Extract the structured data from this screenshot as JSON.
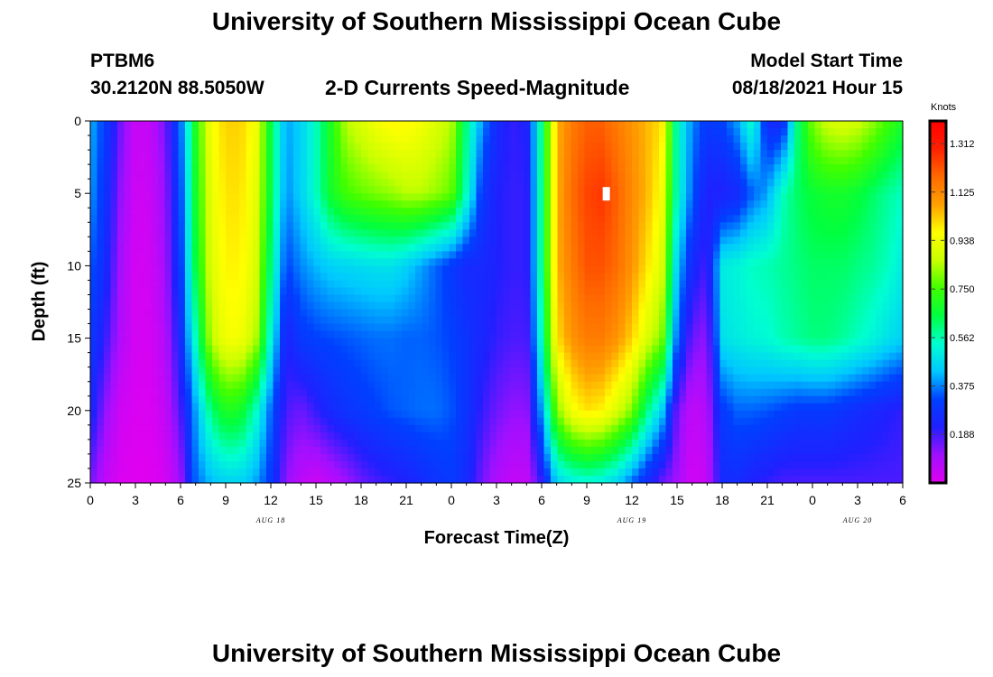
{
  "page": {
    "title_top": "University of Southern Mississippi Ocean Cube",
    "title_bottom": "University of Southern Mississippi Ocean Cube",
    "station": "PTBM6",
    "coordinates": "30.2120N  88.5050W",
    "subtitle": "2-D Currents Speed-Magnitude",
    "model_label": "Model Start Time",
    "model_time": "08/18/2021 Hour 15"
  },
  "colors": {
    "colormap": [
      "#e000f0",
      "#a010ff",
      "#2020ff",
      "#0040ff",
      "#00c8ff",
      "#00ffd0",
      "#00ff40",
      "#40ff00",
      "#c8ff00",
      "#ffff00",
      "#ffa000",
      "#ff6a00",
      "#ff2000",
      "#ff0000"
    ],
    "marker": "#ffffff"
  },
  "chart_data": {
    "type": "heatmap",
    "title": "2-D Currents Speed-Magnitude",
    "xlabel": "Forecast Time(Z)",
    "ylabel": "Depth (ft)",
    "x_tick_labels": [
      "0",
      "3",
      "6",
      "9",
      "12",
      "15",
      "18",
      "21",
      "0",
      "3",
      "6",
      "9",
      "12",
      "15",
      "18",
      "21",
      "0",
      "3",
      "6"
    ],
    "x_range_hours": [
      0,
      54
    ],
    "date_labels": [
      {
        "label": "AUG 18",
        "hour": 12
      },
      {
        "label": "AUG 19",
        "hour": 36
      },
      {
        "label": "AUG 20",
        "hour": 51
      }
    ],
    "y_tick_labels": [
      "0",
      "5",
      "10",
      "15",
      "20",
      "25"
    ],
    "y_range_ft": [
      0,
      25
    ],
    "colorbar": {
      "unit": "Knots",
      "min": 0.0,
      "max": 1.4,
      "tick_labels": [
        "1.312",
        "1.125",
        "0.938",
        "0.750",
        "0.562",
        "0.375",
        "0.188"
      ],
      "tick_values": [
        1.312,
        1.125,
        0.938,
        0.75,
        0.562,
        0.375,
        0.188
      ]
    },
    "depths_ft": [
      0,
      5,
      10,
      15,
      20,
      25
    ],
    "hours": [
      0,
      1,
      2,
      3,
      4,
      5,
      6,
      7,
      8,
      9,
      10,
      11,
      12,
      13,
      14,
      15,
      16,
      17,
      18,
      19,
      20,
      21,
      22,
      23,
      24,
      25,
      26,
      27,
      28,
      29,
      30,
      31,
      32,
      33,
      34,
      35,
      36,
      37,
      38,
      39,
      40,
      41,
      42,
      43,
      44,
      45,
      46,
      47,
      48,
      49,
      50,
      51,
      52,
      53,
      54
    ],
    "speed_knots": [
      [
        0.42,
        0.3,
        0.15,
        0.04,
        0.05,
        0.15,
        0.35,
        0.7,
        0.95,
        1.02,
        1.02,
        0.95,
        0.65,
        0.4,
        0.45,
        0.55,
        0.7,
        0.85,
        0.9,
        0.95,
        0.98,
        0.98,
        0.95,
        0.9,
        0.85,
        0.6,
        0.4,
        0.25,
        0.2,
        0.22,
        0.6,
        1.05,
        1.15,
        1.2,
        1.2,
        1.15,
        1.1,
        1.05,
        1.0,
        0.55,
        0.38,
        0.3,
        0.32,
        0.4,
        0.55,
        0.25,
        0.25,
        0.6,
        0.8,
        0.88,
        0.9,
        0.88,
        0.82,
        0.75,
        0.68
      ],
      [
        0.4,
        0.28,
        0.12,
        0.03,
        0.04,
        0.12,
        0.32,
        0.68,
        0.92,
        1.0,
        1.0,
        0.92,
        0.65,
        0.38,
        0.45,
        0.55,
        0.68,
        0.75,
        0.78,
        0.8,
        0.82,
        0.85,
        0.85,
        0.82,
        0.78,
        0.55,
        0.3,
        0.22,
        0.2,
        0.2,
        0.6,
        1.05,
        1.18,
        1.24,
        1.26,
        1.2,
        1.12,
        1.05,
        0.95,
        0.55,
        0.35,
        0.22,
        0.22,
        0.25,
        0.35,
        0.4,
        0.55,
        0.62,
        0.66,
        0.68,
        0.68,
        0.66,
        0.62,
        0.58,
        0.55
      ],
      [
        0.35,
        0.25,
        0.1,
        0.02,
        0.03,
        0.1,
        0.3,
        0.65,
        0.9,
        0.98,
        0.98,
        0.9,
        0.6,
        0.32,
        0.38,
        0.42,
        0.45,
        0.46,
        0.47,
        0.48,
        0.48,
        0.45,
        0.4,
        0.35,
        0.3,
        0.25,
        0.25,
        0.22,
        0.2,
        0.2,
        0.6,
        1.05,
        1.15,
        1.22,
        1.22,
        1.18,
        1.1,
        1.0,
        0.9,
        0.45,
        0.25,
        0.18,
        0.5,
        0.52,
        0.55,
        0.56,
        0.58,
        0.6,
        0.62,
        0.62,
        0.62,
        0.6,
        0.58,
        0.55,
        0.5
      ],
      [
        0.3,
        0.2,
        0.08,
        0.02,
        0.02,
        0.08,
        0.25,
        0.55,
        0.85,
        0.95,
        0.95,
        0.85,
        0.52,
        0.22,
        0.3,
        0.32,
        0.33,
        0.34,
        0.35,
        0.36,
        0.36,
        0.35,
        0.35,
        0.34,
        0.32,
        0.28,
        0.24,
        0.2,
        0.18,
        0.18,
        0.55,
        1.0,
        1.1,
        1.15,
        1.15,
        1.1,
        1.02,
        0.9,
        0.8,
        0.35,
        0.15,
        0.12,
        0.48,
        0.5,
        0.52,
        0.53,
        0.56,
        0.58,
        0.6,
        0.6,
        0.58,
        0.55,
        0.52,
        0.48,
        0.45
      ],
      [
        0.25,
        0.12,
        0.03,
        0.01,
        0.01,
        0.05,
        0.18,
        0.4,
        0.6,
        0.7,
        0.68,
        0.55,
        0.35,
        0.18,
        0.15,
        0.2,
        0.25,
        0.28,
        0.3,
        0.32,
        0.34,
        0.35,
        0.36,
        0.36,
        0.34,
        0.28,
        0.2,
        0.15,
        0.12,
        0.12,
        0.4,
        0.8,
        0.95,
        1.0,
        0.98,
        0.9,
        0.8,
        0.6,
        0.45,
        0.15,
        0.05,
        0.08,
        0.3,
        0.35,
        0.35,
        0.34,
        0.32,
        0.3,
        0.3,
        0.3,
        0.28,
        0.26,
        0.24,
        0.22,
        0.2
      ],
      [
        0.15,
        0.05,
        0.01,
        0.0,
        0.0,
        0.02,
        0.1,
        0.35,
        0.42,
        0.45,
        0.45,
        0.4,
        0.3,
        0.12,
        0.06,
        0.03,
        0.06,
        0.1,
        0.15,
        0.18,
        0.2,
        0.22,
        0.25,
        0.28,
        0.3,
        0.25,
        0.15,
        0.08,
        0.05,
        0.05,
        0.2,
        0.45,
        0.5,
        0.52,
        0.5,
        0.45,
        0.35,
        0.25,
        0.15,
        0.1,
        0.02,
        0.05,
        0.25,
        0.25,
        0.22,
        0.2,
        0.18,
        0.18,
        0.18,
        0.18,
        0.18,
        0.18,
        0.18,
        0.18,
        0.18
      ]
    ],
    "annotations": [
      {
        "type": "marker",
        "hour": 34.3,
        "depth_ft": 5
      }
    ]
  }
}
